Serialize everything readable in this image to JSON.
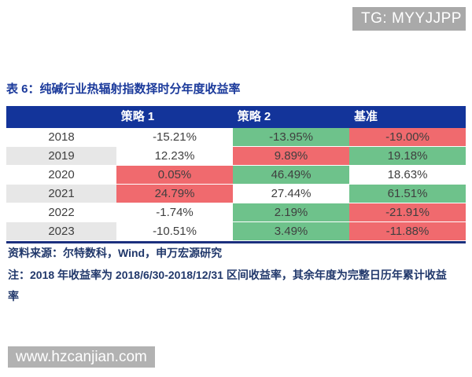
{
  "colors": {
    "header_blue": "#13349a",
    "title_blue": "#1b3a9b",
    "note_blue": "#21386b",
    "positive_green": "#6ec28b",
    "negative_red": "#f06a6e",
    "row_alt_gray": "#e7e7e7",
    "cell_text": "#3f3f3f",
    "badge_gray": "#a9a9a9",
    "watermark_gray": "#b2b2b2"
  },
  "badges": {
    "telegram": "TG: MYYJJPP",
    "watermark": "www.hzcanjian.com"
  },
  "table": {
    "title": "表 6：纯碱行业热辐射指数择时分年度收益率",
    "columns": [
      "",
      "策略 1",
      "策略 2",
      "基准"
    ],
    "rows": [
      {
        "year": "2018",
        "year_bg": "white",
        "values": [
          "-15.21%",
          "-13.95%",
          "-19.00%"
        ],
        "value_bgs": [
          "white",
          "green",
          "red"
        ]
      },
      {
        "year": "2019",
        "year_bg": "gray",
        "values": [
          "12.23%",
          "9.89%",
          "19.18%"
        ],
        "value_bgs": [
          "white",
          "red",
          "green"
        ]
      },
      {
        "year": "2020",
        "year_bg": "white",
        "values": [
          "0.05%",
          "46.49%",
          "18.63%"
        ],
        "value_bgs": [
          "red",
          "green",
          "white"
        ]
      },
      {
        "year": "2021",
        "year_bg": "gray",
        "values": [
          "24.79%",
          "27.44%",
          "61.51%"
        ],
        "value_bgs": [
          "red",
          "white",
          "green"
        ]
      },
      {
        "year": "2022",
        "year_bg": "white",
        "values": [
          "-1.74%",
          "2.19%",
          "-21.91%"
        ],
        "value_bgs": [
          "white",
          "green",
          "red"
        ]
      },
      {
        "year": "2023",
        "year_bg": "gray",
        "values": [
          "-10.51%",
          "3.49%",
          "-11.88%"
        ],
        "value_bgs": [
          "white",
          "green",
          "red"
        ]
      }
    ]
  },
  "notes": {
    "source": "资料来源：尔特数科，Wind，申万宏源研究",
    "note": "注：2018 年收益率为 2018/6/30-2018/12/31 区间收益率，其余年度为完整日历年累计收益率"
  },
  "chart_data": {
    "type": "table",
    "title": "表 6：纯碱行业热辐射指数择时分年度收益率",
    "categories": [
      "2018",
      "2019",
      "2020",
      "2021",
      "2022",
      "2023"
    ],
    "series": [
      {
        "name": "策略 1",
        "values": [
          -15.21,
          12.23,
          0.05,
          24.79,
          -1.74,
          -10.51
        ]
      },
      {
        "name": "策略 2",
        "values": [
          -13.95,
          9.89,
          46.49,
          27.44,
          2.19,
          3.49
        ]
      },
      {
        "name": "基准",
        "values": [
          -19.0,
          19.18,
          18.63,
          61.51,
          -21.91,
          -11.88
        ]
      }
    ],
    "unit": "%"
  }
}
